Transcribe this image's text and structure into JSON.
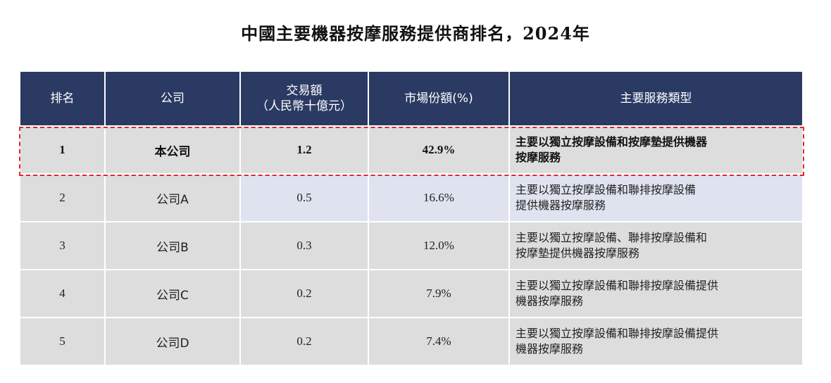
{
  "title": "中國主要機器按摩服務提供商排名，2024年",
  "headers": [
    "排名",
    "公司",
    "交易額",
    "（人民幣十億元）",
    "市場份額(%)",
    "主要服務類型"
  ],
  "rows": [
    {
      "rank": "1",
      "company": "本公司",
      "amount": "1.2",
      "share": "42.9%",
      "service": [
        "主要以獨立按摩設備和按摩墊提供機器",
        "按摩服務"
      ]
    },
    {
      "rank": "2",
      "company": "公司A",
      "amount": "0.5",
      "share": "16.6%",
      "service": [
        "主要以獨立按摩設備和聯排按摩設備",
        "提供機器按摩服務"
      ]
    },
    {
      "rank": "3",
      "company": "公司B",
      "amount": "0.3",
      "share": "12.0%",
      "service": [
        "主要以獨立按摩設備、聯排按摩設備和",
        "按摩墊提供機器按摩服務"
      ]
    },
    {
      "rank": "4",
      "company": "公司C",
      "amount": "0.2",
      "share": "7.9%",
      "service": [
        "主要以獨立按摩設備和聯排按摩設備提供",
        "機器按摩服務"
      ]
    },
    {
      "rank": "5",
      "company": "公司D",
      "amount": "0.2",
      "share": "7.4%",
      "service": [
        "主要以獨立按摩設備和聯排按摩設備提供",
        "機器按摩服務"
      ]
    }
  ],
  "colors": {
    "header": "#2b3a63",
    "highlight": "#e0262b",
    "row": "#dddddd",
    "row_alt": "#dfe3ef"
  }
}
